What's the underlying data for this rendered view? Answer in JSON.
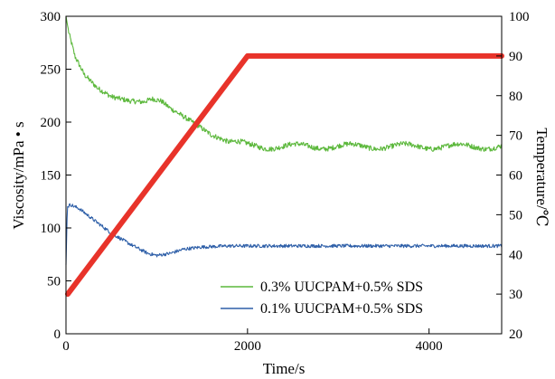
{
  "chart_data": {
    "type": "line",
    "xlabel": "Time/s",
    "ylabel_left": "Viscosity/mPa • s",
    "ylabel_right": "Temperature/℃",
    "xlim": [
      0,
      4800
    ],
    "ylim_left": [
      0,
      300
    ],
    "ylim_right": [
      20,
      100
    ],
    "x_ticks": [
      0,
      2000,
      4000
    ],
    "y_ticks_left": [
      0,
      50,
      100,
      150,
      200,
      250,
      300
    ],
    "y_ticks_right": [
      20,
      30,
      40,
      50,
      60,
      70,
      80,
      90,
      100
    ],
    "grid": false,
    "legend_position": "bottom-right",
    "series": [
      {
        "name": "0.3% UUCPAM+0.5% SDS",
        "axis": "left",
        "color": "#5cb83c",
        "points": [
          [
            0,
            300
          ],
          [
            30,
            285
          ],
          [
            100,
            262
          ],
          [
            200,
            245
          ],
          [
            350,
            232
          ],
          [
            500,
            224
          ],
          [
            700,
            220
          ],
          [
            850,
            219
          ],
          [
            950,
            222
          ],
          [
            1050,
            220
          ],
          [
            1150,
            213
          ],
          [
            1300,
            205
          ],
          [
            1450,
            197
          ],
          [
            1600,
            188
          ],
          [
            1800,
            181
          ],
          [
            2000,
            178
          ],
          [
            2200,
            177
          ],
          [
            2600,
            177
          ],
          [
            3000,
            177
          ],
          [
            3500,
            177
          ],
          [
            4000,
            177
          ],
          [
            4500,
            177
          ],
          [
            4800,
            177
          ]
        ]
      },
      {
        "name": "0.1% UUCPAM+0.5% SDS",
        "axis": "left",
        "color": "#2e5fa8",
        "points": [
          [
            0,
            65
          ],
          [
            15,
            120
          ],
          [
            50,
            122
          ],
          [
            150,
            118
          ],
          [
            300,
            108
          ],
          [
            500,
            95
          ],
          [
            700,
            85
          ],
          [
            900,
            76
          ],
          [
            1000,
            74
          ],
          [
            1150,
            76
          ],
          [
            1300,
            80
          ],
          [
            1500,
            82
          ],
          [
            1800,
            83
          ],
          [
            2200,
            83
          ],
          [
            3000,
            83
          ],
          [
            4000,
            83
          ],
          [
            4800,
            83
          ]
        ]
      },
      {
        "name": "",
        "axis": "right",
        "color": "#e8332a",
        "points": [
          [
            20,
            30
          ],
          [
            2000,
            90
          ],
          [
            4800,
            90
          ]
        ]
      }
    ]
  }
}
